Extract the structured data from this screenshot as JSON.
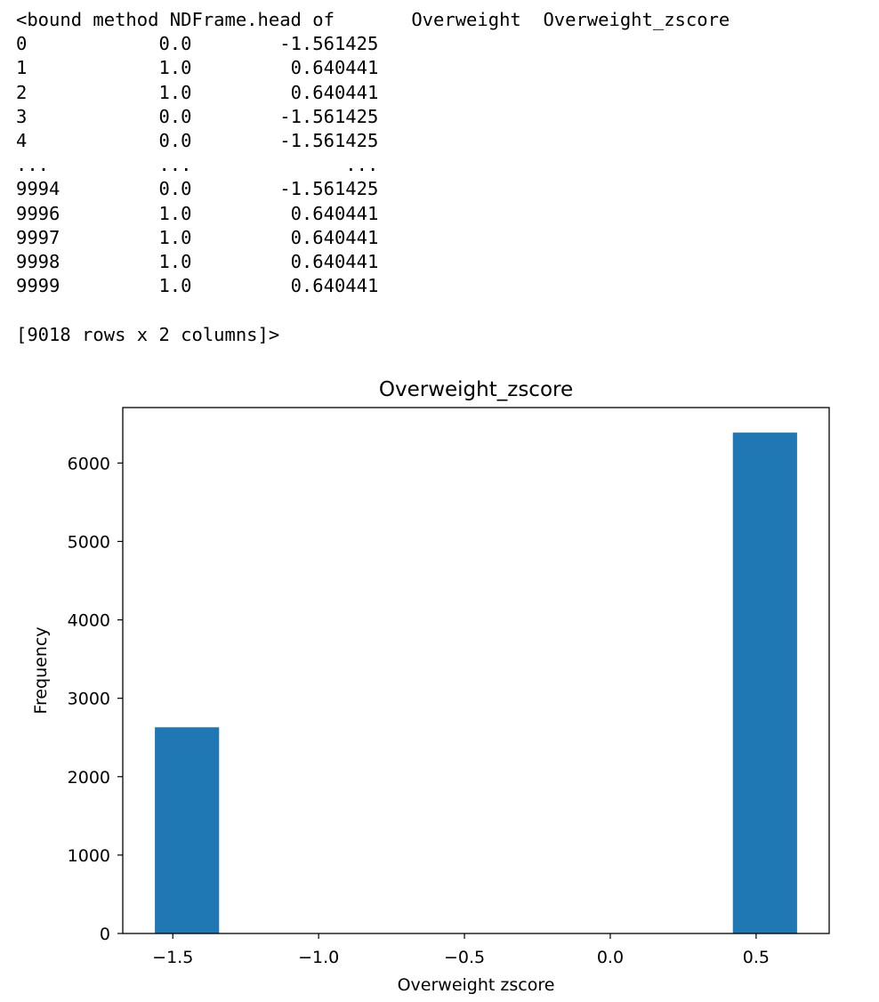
{
  "output": {
    "header_prefix": "<bound method NDFrame.head of",
    "columns": [
      "Overweight",
      "Overweight_zscore"
    ],
    "rows": [
      {
        "index": "0",
        "overweight": "0.0",
        "zscore": "-1.561425"
      },
      {
        "index": "1",
        "overweight": "1.0",
        "zscore": "0.640441"
      },
      {
        "index": "2",
        "overweight": "1.0",
        "zscore": "0.640441"
      },
      {
        "index": "3",
        "overweight": "0.0",
        "zscore": "-1.561425"
      },
      {
        "index": "4",
        "overweight": "0.0",
        "zscore": "-1.561425"
      },
      {
        "index": "...",
        "overweight": "...",
        "zscore": "..."
      },
      {
        "index": "9994",
        "overweight": "0.0",
        "zscore": "-1.561425"
      },
      {
        "index": "9996",
        "overweight": "1.0",
        "zscore": "0.640441"
      },
      {
        "index": "9997",
        "overweight": "1.0",
        "zscore": "0.640441"
      },
      {
        "index": "9998",
        "overweight": "1.0",
        "zscore": "0.640441"
      },
      {
        "index": "9999",
        "overweight": "1.0",
        "zscore": "0.640441"
      }
    ],
    "footer": "[9018 rows x 2 columns]>"
  },
  "chart_data": {
    "type": "bar",
    "title": "Overweight_zscore",
    "xlabel": "Overweight zscore",
    "ylabel": "Frequency",
    "bins": [
      {
        "x0": -1.561425,
        "x1": -1.341238,
        "count": 2630
      },
      {
        "x0": -1.341238,
        "x1": -1.121052,
        "count": 0
      },
      {
        "x0": -1.121052,
        "x1": -0.900865,
        "count": 0
      },
      {
        "x0": -0.900865,
        "x1": -0.680678,
        "count": 0
      },
      {
        "x0": -0.680678,
        "x1": -0.460492,
        "count": 0
      },
      {
        "x0": -0.460492,
        "x1": -0.240305,
        "count": 0
      },
      {
        "x0": -0.240305,
        "x1": -0.020118,
        "count": 0
      },
      {
        "x0": -0.020118,
        "x1": 0.200068,
        "count": 0
      },
      {
        "x0": 0.200068,
        "x1": 0.420255,
        "count": 0
      },
      {
        "x0": 0.420255,
        "x1": 0.640441,
        "count": 6388
      }
    ],
    "xlim": [
      -1.671518,
      0.750534
    ],
    "ylim": [
      0,
      6707.4
    ],
    "xticks": [
      -1.5,
      -1.0,
      -0.5,
      0.0,
      0.5
    ],
    "xtick_labels": [
      "−1.5",
      "−1.0",
      "−0.5",
      "0.0",
      "0.5"
    ],
    "yticks": [
      0,
      1000,
      2000,
      3000,
      4000,
      5000,
      6000
    ],
    "ytick_labels": [
      "0",
      "1000",
      "2000",
      "3000",
      "4000",
      "5000",
      "6000"
    ],
    "bar_color": "#1f77b4",
    "grid": false,
    "legend": "none"
  }
}
